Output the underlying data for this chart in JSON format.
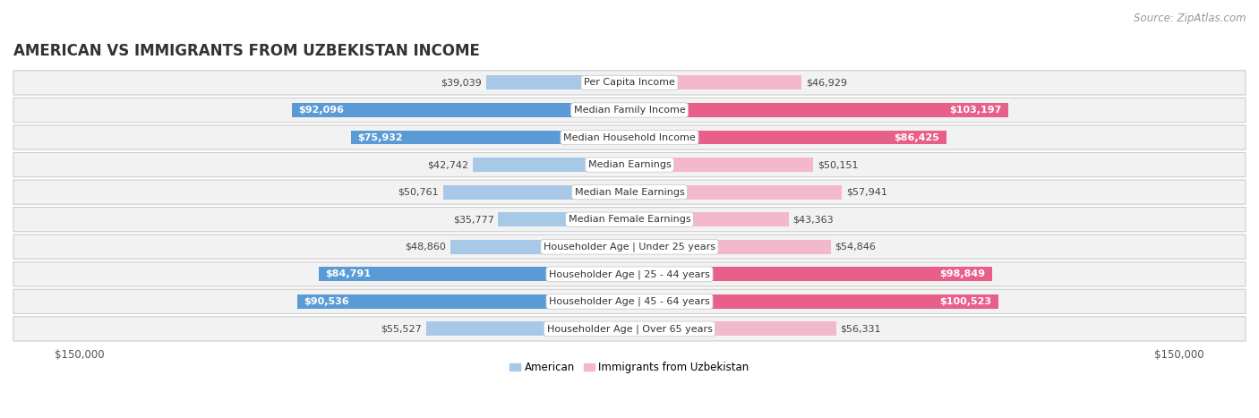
{
  "title": "AMERICAN VS IMMIGRANTS FROM UZBEKISTAN INCOME",
  "source": "Source: ZipAtlas.com",
  "categories": [
    "Per Capita Income",
    "Median Family Income",
    "Median Household Income",
    "Median Earnings",
    "Median Male Earnings",
    "Median Female Earnings",
    "Householder Age | Under 25 years",
    "Householder Age | 25 - 44 years",
    "Householder Age | 45 - 64 years",
    "Householder Age | Over 65 years"
  ],
  "american_values": [
    39039,
    92096,
    75932,
    42742,
    50761,
    35777,
    48860,
    84791,
    90536,
    55527
  ],
  "immigrant_values": [
    46929,
    103197,
    86425,
    50151,
    57941,
    43363,
    54846,
    98849,
    100523,
    56331
  ],
  "american_labels": [
    "$39,039",
    "$92,096",
    "$75,932",
    "$42,742",
    "$50,761",
    "$35,777",
    "$48,860",
    "$84,791",
    "$90,536",
    "$55,527"
  ],
  "immigrant_labels": [
    "$46,929",
    "$103,197",
    "$86,425",
    "$50,151",
    "$57,941",
    "$43,363",
    "$54,846",
    "$98,849",
    "$100,523",
    "$56,331"
  ],
  "american_color_light": "#a8c8e8",
  "american_color_dark": "#5b9bd5",
  "immigrant_color_light": "#f4b8cc",
  "immigrant_color_dark": "#e8608a",
  "max_value": 150000,
  "american_legend": "American",
  "immigrant_legend": "Immigrants from Uzbekistan",
  "background_color": "#ffffff",
  "row_bg_color": "#f2f2f2",
  "inside_label_threshold": 75000,
  "title_fontsize": 12,
  "source_fontsize": 8.5,
  "bar_label_fontsize": 8,
  "category_fontsize": 8
}
